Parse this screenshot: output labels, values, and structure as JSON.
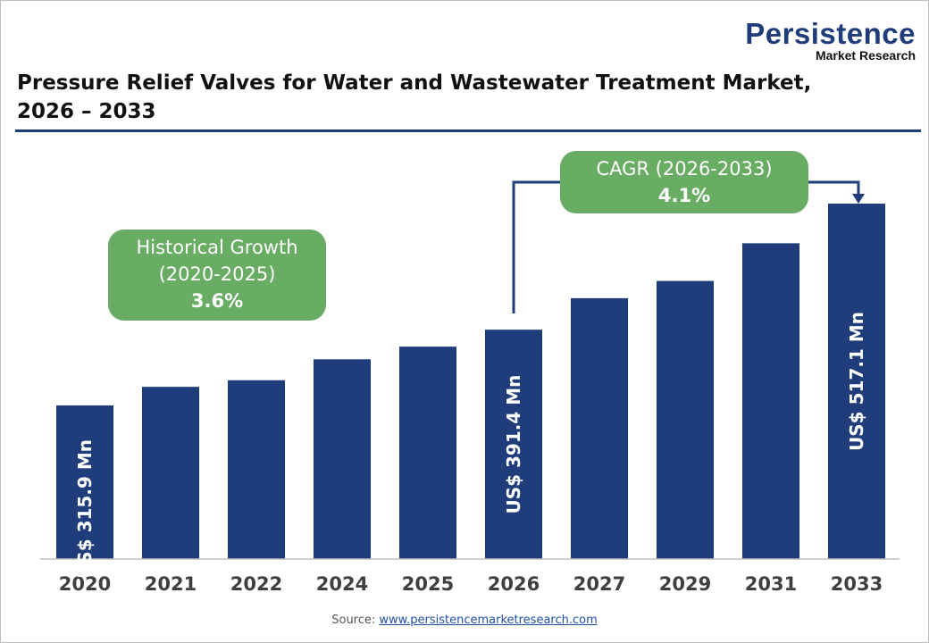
{
  "logo": {
    "name": "Persistence",
    "tagline": "Market Research"
  },
  "title_line1": "Pressure Relief Valves for Water and Wastewater Treatment Market,",
  "title_line2": "2026 – 2033",
  "historical": {
    "label": "Historical Growth",
    "period": "(2020-2025)",
    "value": "3.6%"
  },
  "cagr": {
    "label": "CAGR (2026-2033)",
    "value": "4.1%"
  },
  "source": {
    "label": "Source:",
    "link": "www.persistencemarketresearch.com"
  },
  "colors": {
    "bar": "#1f3d7a",
    "callout": "#69ac63"
  },
  "chart_data": {
    "type": "bar",
    "categories": [
      "2020",
      "2021",
      "2022",
      "2024",
      "2025",
      "2026",
      "2027",
      "2029",
      "2031",
      "2033"
    ],
    "values": [
      315.9,
      334.4,
      341.0,
      361.9,
      374.5,
      391.4,
      422.8,
      440.0,
      477.6,
      517.1
    ],
    "data_labels": {
      "2020": "US$ 315.9 Mn",
      "2026": "US$ 391.4 Mn",
      "2033": "US$ 517.1 Mn"
    },
    "title": "Pressure Relief Valves for Water and Wastewater Treatment Market, 2026 – 2033",
    "xlabel": "",
    "ylabel": "",
    "grid": false,
    "legend": "none"
  }
}
